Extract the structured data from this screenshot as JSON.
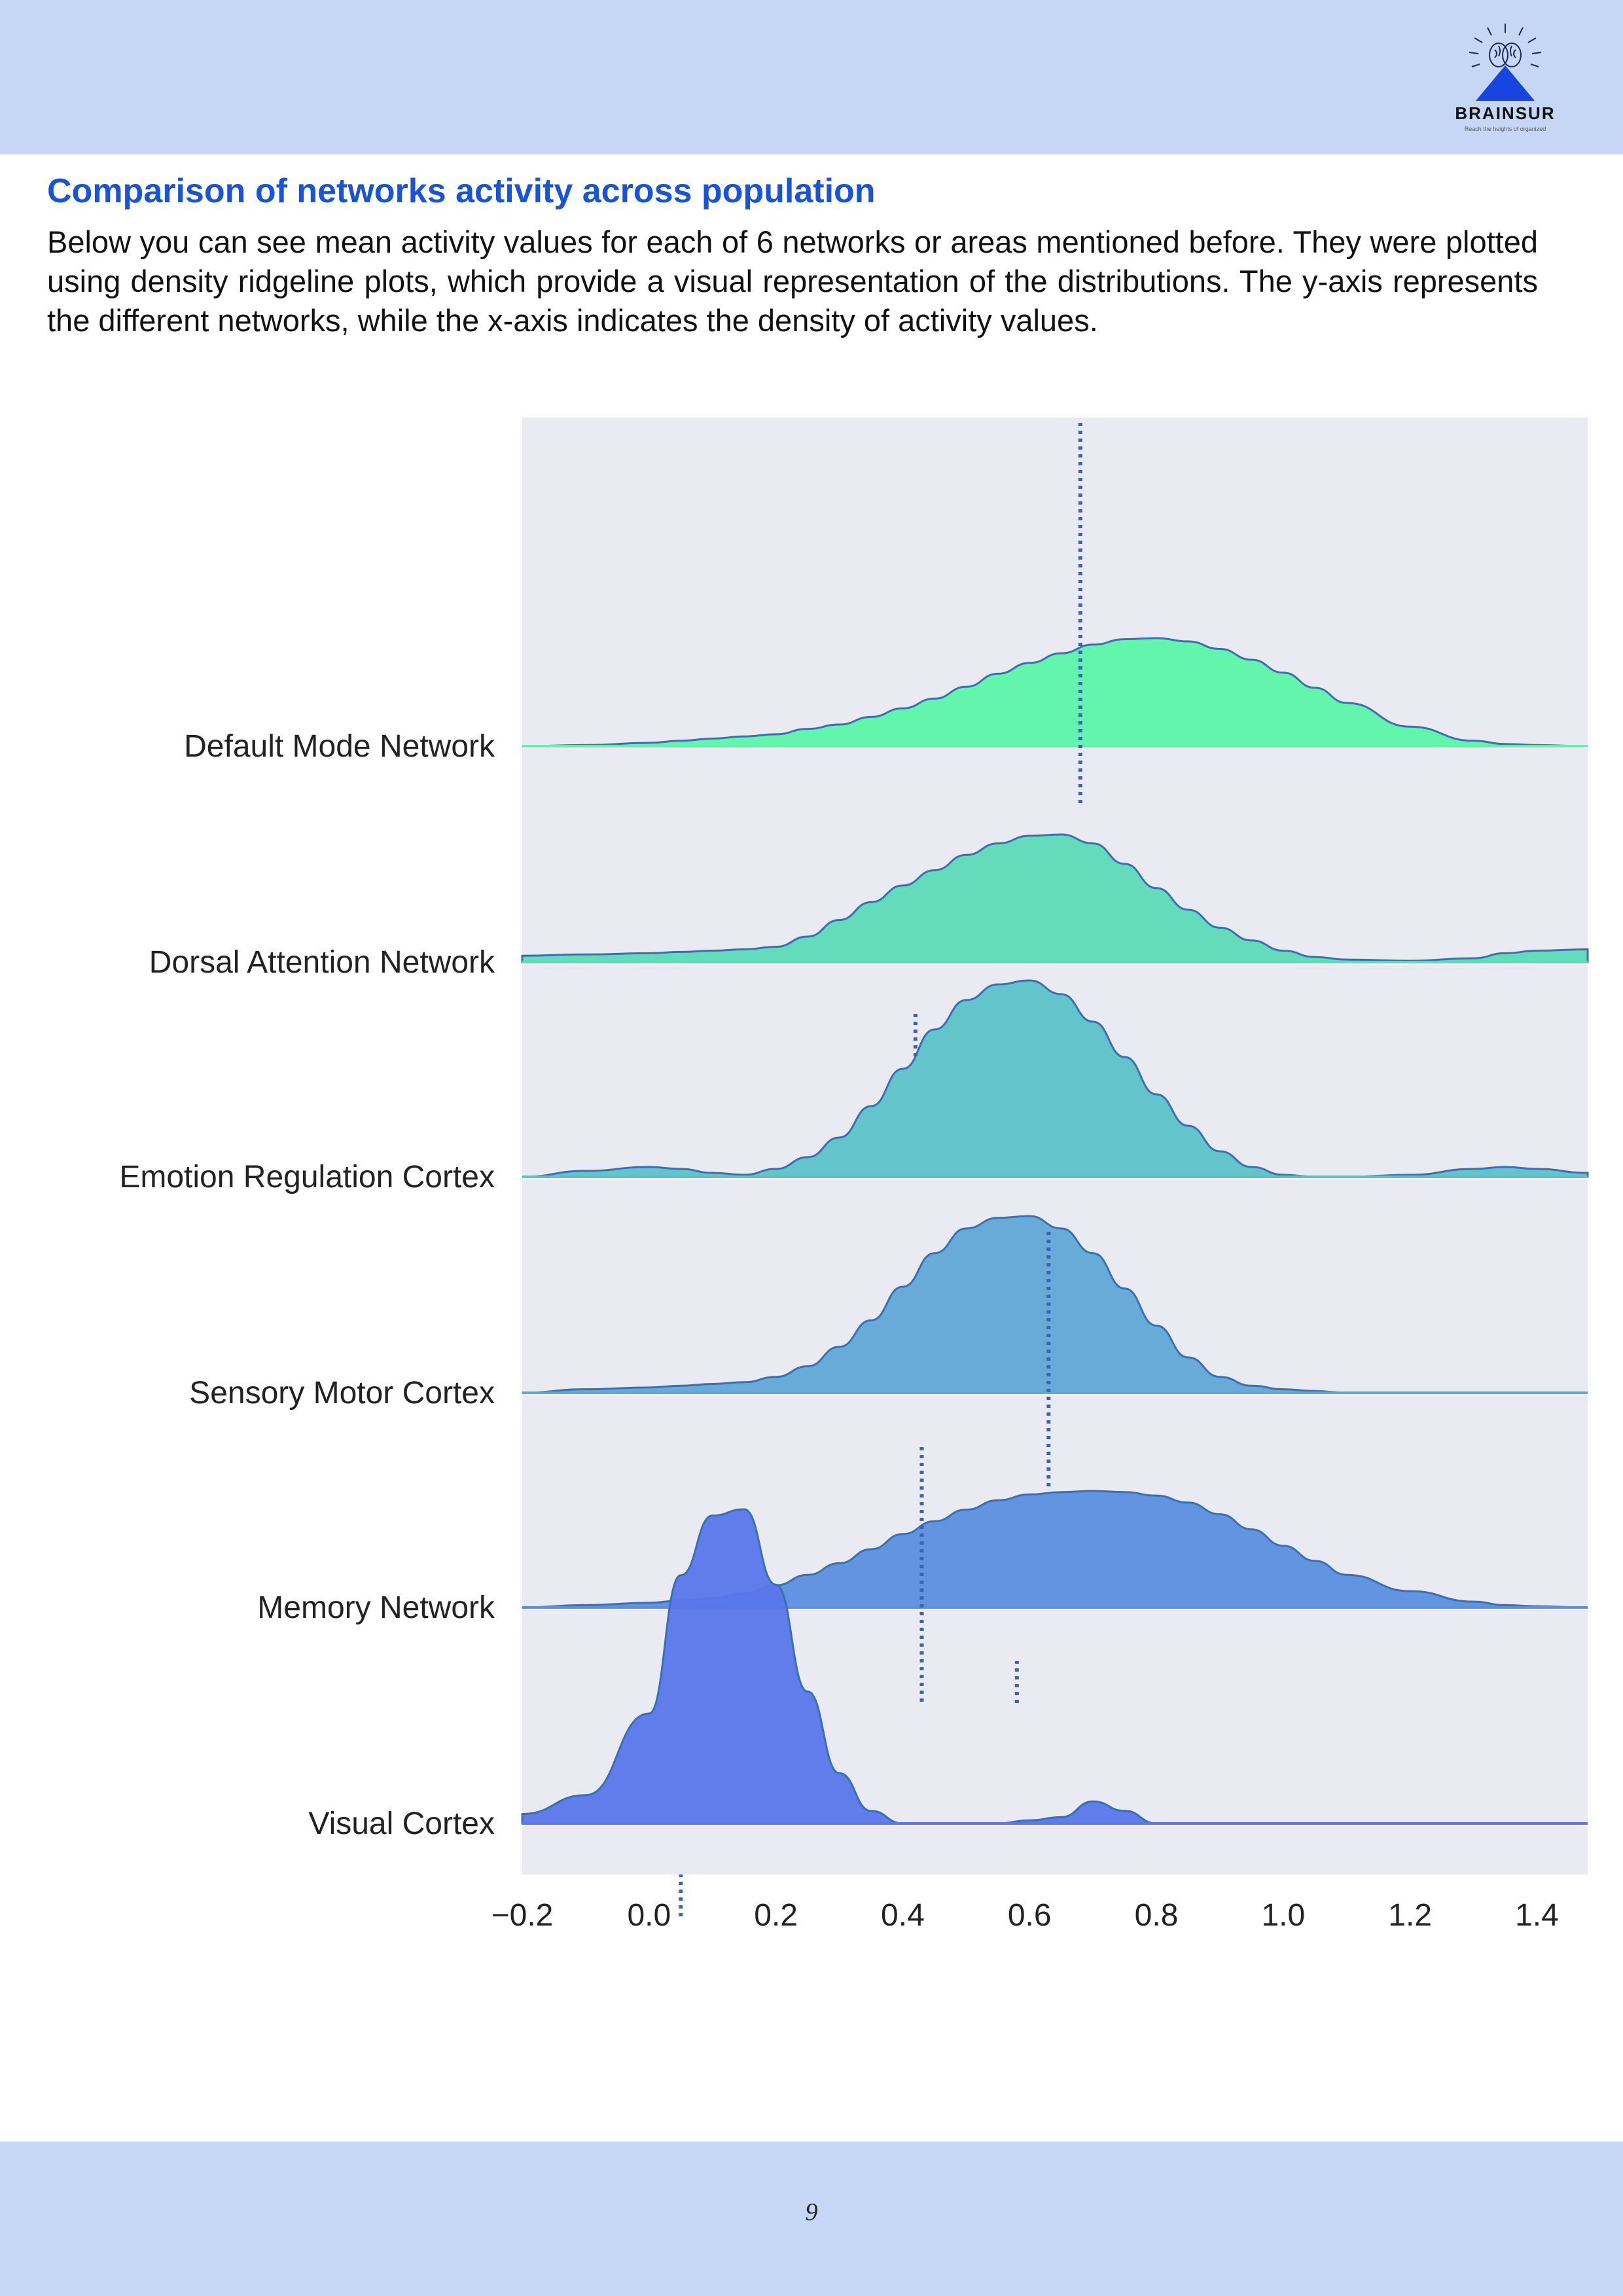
{
  "header": {
    "logo_name": "BRAINSUR",
    "logo_tagline": "Reach the heights of organized",
    "background": "#c5d7f5"
  },
  "section": {
    "title": "Comparison of networks activity across population",
    "intro": "Below you can see mean activity values for each of 6 networks or areas mentioned before. They were plotted using density ridgeline plots, which provide a visual representation of the distributions. The y-axis represents the different networks, while the x-axis indicates the density of activity values."
  },
  "chart_data": {
    "type": "area",
    "subtype": "ridgeline",
    "title": "",
    "xlabel": "",
    "ylabel": "",
    "xlim": [
      -0.2,
      1.48
    ],
    "x_ticks": [
      "−0.2",
      "0.0",
      "0.2",
      "0.4",
      "0.6",
      "0.8",
      "1.0",
      "1.2",
      "1.4"
    ],
    "grid": false,
    "background": "#eaeaf2",
    "x": [
      -0.2,
      -0.1,
      0.0,
      0.05,
      0.1,
      0.15,
      0.2,
      0.25,
      0.3,
      0.35,
      0.4,
      0.45,
      0.5,
      0.55,
      0.6,
      0.65,
      0.7,
      0.75,
      0.8,
      0.85,
      0.9,
      0.95,
      1.0,
      1.05,
      1.1,
      1.2,
      1.3,
      1.35,
      1.4,
      1.48
    ],
    "series": [
      {
        "name": "Default Mode Network",
        "color": "#5cf5a8",
        "values": [
          0.0,
          0.01,
          0.03,
          0.05,
          0.07,
          0.09,
          0.11,
          0.16,
          0.2,
          0.27,
          0.35,
          0.44,
          0.55,
          0.67,
          0.77,
          0.86,
          0.94,
          0.99,
          1.0,
          0.97,
          0.9,
          0.8,
          0.68,
          0.54,
          0.4,
          0.18,
          0.05,
          0.02,
          0.01,
          0.0
        ],
        "mean_line": 0.68
      },
      {
        "name": "Dorsal Attention Network",
        "color": "#5ddbb8",
        "values": [
          0.05,
          0.06,
          0.07,
          0.08,
          0.09,
          0.1,
          0.12,
          0.2,
          0.33,
          0.47,
          0.6,
          0.72,
          0.84,
          0.93,
          0.99,
          1.0,
          0.93,
          0.77,
          0.58,
          0.41,
          0.27,
          0.17,
          0.09,
          0.04,
          0.02,
          0.01,
          0.03,
          0.07,
          0.09,
          0.1
        ],
        "mean_line": 0.42
      },
      {
        "name": "Emotion Regulation Cortex",
        "color": "#5cc2c8",
        "values": [
          0.0,
          0.03,
          0.05,
          0.04,
          0.02,
          0.01,
          0.04,
          0.1,
          0.2,
          0.36,
          0.55,
          0.75,
          0.9,
          0.98,
          1.0,
          0.93,
          0.79,
          0.61,
          0.42,
          0.26,
          0.13,
          0.05,
          0.01,
          0.0,
          0.0,
          0.01,
          0.04,
          0.05,
          0.04,
          0.02
        ],
        "mean_line": 0.63
      },
      {
        "name": "Sensory Motor Cortex",
        "color": "#62a8d6",
        "values": [
          0.0,
          0.02,
          0.03,
          0.04,
          0.05,
          0.06,
          0.09,
          0.15,
          0.26,
          0.41,
          0.6,
          0.79,
          0.93,
          0.99,
          1.0,
          0.93,
          0.79,
          0.59,
          0.38,
          0.2,
          0.09,
          0.04,
          0.02,
          0.01,
          0.0,
          0.0,
          0.0,
          0.0,
          0.0,
          0.0
        ],
        "mean_line": 0.43
      },
      {
        "name": "Memory Network",
        "color": "#5b8fdf",
        "values": [
          0.0,
          0.02,
          0.04,
          0.06,
          0.08,
          0.12,
          0.19,
          0.28,
          0.38,
          0.5,
          0.63,
          0.74,
          0.84,
          0.92,
          0.97,
          0.99,
          1.0,
          0.99,
          0.96,
          0.9,
          0.8,
          0.67,
          0.53,
          0.4,
          0.28,
          0.14,
          0.05,
          0.02,
          0.01,
          0.0
        ],
        "mean_line": 0.58
      },
      {
        "name": "Visual Cortex",
        "color": "#5a76ea",
        "values": [
          0.03,
          0.09,
          0.35,
          0.79,
          0.98,
          1.0,
          0.76,
          0.42,
          0.16,
          0.04,
          0.0,
          0.0,
          0.0,
          0.0,
          0.01,
          0.02,
          0.07,
          0.04,
          0.0,
          0.0,
          0.0,
          null,
          null,
          null,
          null,
          null,
          null,
          null,
          null,
          null
        ],
        "mean_line": 0.05
      }
    ]
  },
  "footer": {
    "page_number": "9",
    "background": "#c5d7f5"
  }
}
